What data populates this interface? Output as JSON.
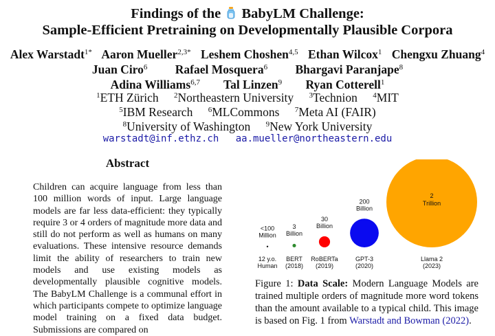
{
  "title": {
    "line1_pre": "Findings of the",
    "line1_post": "BabyLM Challenge:",
    "line2": "Sample-Efficient Pretraining on Developmentally Plausible Corpora"
  },
  "authors": [
    {
      "name": "Alex Warstadt",
      "sup": "1*"
    },
    {
      "name": "Aaron Mueller",
      "sup": "2,3*"
    },
    {
      "name": "Leshem Choshen",
      "sup": "4,5"
    },
    {
      "name": "Ethan Wilcox",
      "sup": "1"
    },
    {
      "name": "Chengxu Zhuang",
      "sup": "4"
    },
    {
      "name": "Juan Ciro",
      "sup": "6"
    },
    {
      "name": "Rafael Mosquera",
      "sup": "6"
    },
    {
      "name": "Bhargavi Paranjape",
      "sup": "8"
    },
    {
      "name": "Adina Williams",
      "sup": "6,7"
    },
    {
      "name": "Tal Linzen",
      "sup": "9"
    },
    {
      "name": "Ryan Cotterell",
      "sup": "1"
    }
  ],
  "affiliations": [
    {
      "num": "1",
      "name": "ETH Zürich"
    },
    {
      "num": "2",
      "name": "Northeastern University"
    },
    {
      "num": "3",
      "name": "Technion"
    },
    {
      "num": "4",
      "name": "MIT"
    },
    {
      "num": "5",
      "name": "IBM Research"
    },
    {
      "num": "6",
      "name": "MLCommons"
    },
    {
      "num": "7",
      "name": "Meta AI (FAIR)"
    },
    {
      "num": "8",
      "name": "University of Washington"
    },
    {
      "num": "9",
      "name": "New York University"
    }
  ],
  "emails": [
    "warstadt@inf.ethz.ch",
    "aa.mueller@northeastern.edu"
  ],
  "abstract": {
    "heading": "Abstract",
    "text": "Children can acquire language from less than 100 million words of input. Large language models are far less data-efficient: they typically require 3 or 4 orders of magnitude more data and still do not perform as well as humans on many evaluations. These intensive resource demands limit the ability of researchers to train new models and use existing models as developmentally plausible cognitive models. The BabyLM Challenge is a communal effort in which participants compete to optimize language model training on a fixed data budget. Submissions are compared on"
  },
  "figure": {
    "caption_label": "Figure 1:",
    "caption_bold": "Data Scale:",
    "caption_text": "Modern Language Models are trained multiple orders of magnitude more word tokens than the amount available to a typical child. This image is based on Fig. 1 from",
    "caption_cite": "Warstadt and Bowman (2022)",
    "caption_end": "."
  },
  "chart_data": {
    "type": "bubble",
    "title": "Data Scale",
    "series": [
      {
        "name": "12 y.o.",
        "sub": "Human",
        "size_label": [
          "<100",
          "Million"
        ],
        "words": 100000000,
        "color": "#111111"
      },
      {
        "name": "BERT",
        "sub": "(2018)",
        "size_label": [
          "3",
          "Billion"
        ],
        "words": 3000000000,
        "color": "#2e8b2e"
      },
      {
        "name": "RoBERTa",
        "sub": "(2019)",
        "size_label": [
          "30",
          "Billion"
        ],
        "words": 30000000000,
        "color": "#ff0000"
      },
      {
        "name": "GPT-3",
        "sub": "(2020)",
        "size_label": [
          "200",
          "Billion"
        ],
        "words": 200000000000,
        "color": "#0a0af0"
      },
      {
        "name": "Llama 2",
        "sub": "(2023)",
        "size_label": [
          "2",
          "Trillion"
        ],
        "words": 2000000000000,
        "color": "#ffa500"
      }
    ]
  }
}
